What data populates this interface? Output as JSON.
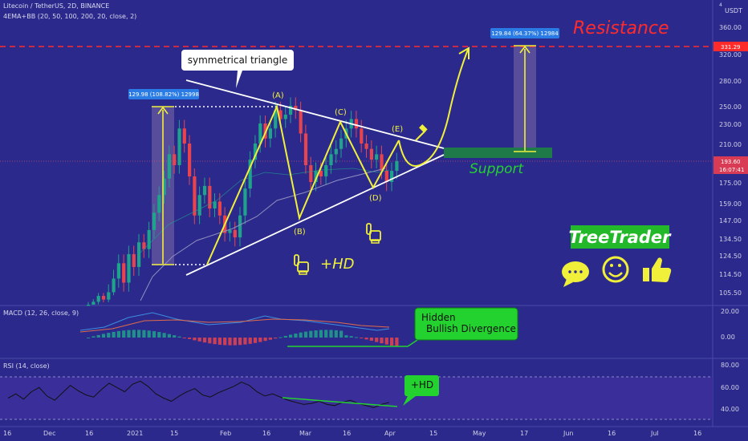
{
  "header": {
    "symbol_line": "Litecoin / TetherUS, 2D, BINANCE",
    "indicator_line": "4EMA+BB (20, 50, 100, 200, 20, close, 2)",
    "currency": "USDT",
    "currency_digit": "4"
  },
  "price_axis": {
    "ticks": [
      "360.00",
      "320.00",
      "280.00",
      "250.00",
      "230.00",
      "210.00",
      "175.00",
      "159.00",
      "147.00",
      "134.50",
      "124.50",
      "114.50",
      "105.50"
    ],
    "resistance_tag": "331.29",
    "last_price_tag": "193.60",
    "countdown_tag": "16:07:41"
  },
  "time_axis": {
    "labels": [
      "16",
      "Dec",
      "16",
      "2021",
      "15",
      "Feb",
      "16",
      "Mar",
      "16",
      "Apr",
      "15",
      "May",
      "17",
      "Jun",
      "16",
      "Jul",
      "16"
    ]
  },
  "annotations": {
    "triangle_label": "symmetrical triangle",
    "point_a": "(A)",
    "point_b": "(B)",
    "point_c": "(C)",
    "point_d": "(D)",
    "point_e": "(E)",
    "measure_left": "129.98 (108.82%) 12998",
    "measure_right": "129.84 (64.37%) 12984",
    "resistance": "Resistance",
    "support": "Support",
    "hd": "+HD",
    "brand": "TreeTrader",
    "hidden_div_line1": "Hidden",
    "hidden_div_line2": "Bullish Divergence",
    "rsi_hd": "+HD"
  },
  "macd": {
    "label": "MACD (12, 26, close, 9)",
    "ticks": [
      "20.00",
      "0.00"
    ]
  },
  "rsi": {
    "label": "RSI (14, close)",
    "ticks": [
      "80.00",
      "60.00",
      "40.00"
    ]
  },
  "colors": {
    "background": "#2b2a8c",
    "up_candle": "#1fa38a",
    "down_candle": "#e8444e",
    "annotation_yellow": "#f0f03a",
    "support_green": "#1f7a4a",
    "resistance_red": "#ff2b2b",
    "label_green": "#23d12f"
  },
  "chart_data": {
    "type": "candlestick",
    "title": "Litecoin / TetherUS, 2D, BINANCE",
    "candles_close": [
      88,
      92,
      100,
      95,
      105,
      112,
      120,
      110,
      125,
      118,
      132,
      128,
      140,
      152,
      165,
      178,
      200,
      190,
      225,
      210,
      180,
      150,
      165,
      172,
      155,
      160,
      150,
      138,
      140,
      135,
      150,
      170,
      195,
      210,
      230,
      215,
      225,
      245,
      235,
      240,
      250,
      245,
      220,
      190,
      175,
      185,
      180,
      190,
      200,
      205,
      215,
      225,
      235,
      225,
      210,
      205,
      195,
      200,
      185,
      175,
      185,
      193.6
    ],
    "ylim": [
      95,
      370
    ],
    "resistance": 331.29,
    "support": 198,
    "last_price": 193.6,
    "macd_ticks": [
      20,
      0
    ],
    "rsi_ticks": [
      80,
      60,
      40
    ],
    "rsi_values": [
      60,
      64,
      59,
      66,
      70,
      62,
      58,
      65,
      72,
      67,
      63,
      61,
      68,
      74,
      70,
      66,
      73,
      76,
      71,
      64,
      60,
      57,
      62,
      66,
      69,
      63,
      61,
      65,
      68,
      71,
      75,
      72,
      66,
      62,
      64,
      61,
      58,
      56,
      54,
      55,
      57,
      54,
      53,
      56,
      58,
      55,
      53,
      51,
      54,
      56
    ]
  }
}
